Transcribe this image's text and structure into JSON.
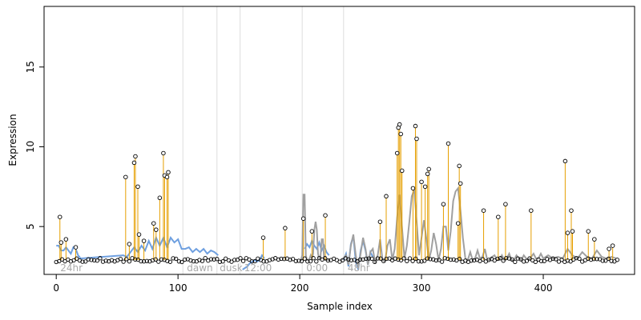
{
  "chart_data": {
    "type": "scatter",
    "title": "",
    "xlabel": "Sample index",
    "ylabel": "Expression",
    "xlim": [
      -10,
      475
    ],
    "ylim": [
      2.0,
      18.8
    ],
    "x_ticks": [
      0,
      100,
      200,
      300,
      400
    ],
    "y_ticks": [
      5,
      10,
      15
    ],
    "grid": false,
    "colors": {
      "points_stroke": "#000000",
      "stems": "#e69f00",
      "fit_blue": "#6fa0e0",
      "fit_gray": "#a0a0a0",
      "phase_lines": "#dddddd",
      "phase_text": "#aaaaaa"
    },
    "phase_boundaries": [
      104,
      132,
      151,
      202,
      236
    ],
    "phase_labels": [
      {
        "text": "24hr",
        "x": 2
      },
      {
        "text": "dawn",
        "x": 106
      },
      {
        "text": "dusk",
        "x": 133
      },
      {
        "text": "12:00",
        "x": 153
      },
      {
        "text": "0:00",
        "x": 204
      },
      {
        "text": "48hr",
        "x": 238
      }
    ],
    "baseline": 2.9,
    "highlighted_points": [
      {
        "x": 3,
        "y": 5.6
      },
      {
        "x": 4,
        "y": 4.0
      },
      {
        "x": 8,
        "y": 4.2
      },
      {
        "x": 16,
        "y": 3.7
      },
      {
        "x": 57,
        "y": 8.1
      },
      {
        "x": 60,
        "y": 3.9
      },
      {
        "x": 64,
        "y": 9.0
      },
      {
        "x": 65,
        "y": 9.4
      },
      {
        "x": 67,
        "y": 7.5
      },
      {
        "x": 68,
        "y": 4.5
      },
      {
        "x": 72,
        "y": 4.1
      },
      {
        "x": 80,
        "y": 5.2
      },
      {
        "x": 82,
        "y": 4.8
      },
      {
        "x": 85,
        "y": 6.8
      },
      {
        "x": 88,
        "y": 9.6
      },
      {
        "x": 89,
        "y": 8.2
      },
      {
        "x": 91,
        "y": 8.1
      },
      {
        "x": 92,
        "y": 8.4
      },
      {
        "x": 170,
        "y": 4.3
      },
      {
        "x": 188,
        "y": 4.9
      },
      {
        "x": 203,
        "y": 5.5
      },
      {
        "x": 210,
        "y": 4.7
      },
      {
        "x": 221,
        "y": 5.7
      },
      {
        "x": 266,
        "y": 5.3
      },
      {
        "x": 271,
        "y": 6.9
      },
      {
        "x": 280,
        "y": 9.6
      },
      {
        "x": 281,
        "y": 11.2
      },
      {
        "x": 282,
        "y": 11.4
      },
      {
        "x": 283,
        "y": 10.8
      },
      {
        "x": 284,
        "y": 8.5
      },
      {
        "x": 293,
        "y": 7.4
      },
      {
        "x": 295,
        "y": 11.3
      },
      {
        "x": 296,
        "y": 10.5
      },
      {
        "x": 300,
        "y": 7.8
      },
      {
        "x": 303,
        "y": 7.5
      },
      {
        "x": 305,
        "y": 8.3
      },
      {
        "x": 306,
        "y": 8.6
      },
      {
        "x": 318,
        "y": 6.4
      },
      {
        "x": 322,
        "y": 10.2
      },
      {
        "x": 330,
        "y": 5.2
      },
      {
        "x": 331,
        "y": 8.8
      },
      {
        "x": 332,
        "y": 7.7
      },
      {
        "x": 351,
        "y": 6.0
      },
      {
        "x": 363,
        "y": 5.6
      },
      {
        "x": 369,
        "y": 6.4
      },
      {
        "x": 390,
        "y": 6.0
      },
      {
        "x": 418,
        "y": 9.1
      },
      {
        "x": 420,
        "y": 4.6
      },
      {
        "x": 423,
        "y": 6.0
      },
      {
        "x": 424,
        "y": 4.7
      },
      {
        "x": 437,
        "y": 4.7
      },
      {
        "x": 442,
        "y": 4.2
      },
      {
        "x": 454,
        "y": 3.6
      },
      {
        "x": 457,
        "y": 3.8
      }
    ],
    "fit_curves": [
      {
        "color": "blue",
        "x": [
          0,
          2,
          4,
          6,
          8,
          10,
          12,
          14,
          16,
          18,
          20,
          55,
          58,
          61,
          64,
          67,
          70,
          73,
          76,
          79,
          82,
          85,
          88,
          91,
          94,
          97,
          100,
          103,
          106,
          109,
          112,
          115,
          118,
          121,
          124,
          127,
          130,
          133
        ],
        "y": [
          3.8,
          3.8,
          3.5,
          3.5,
          3.7,
          3.5,
          3.3,
          3.7,
          3.6,
          3.2,
          3.0,
          3.2,
          3.1,
          3.4,
          3.7,
          3.4,
          3.8,
          3.5,
          4.1,
          3.6,
          4.3,
          3.8,
          4.3,
          3.7,
          4.3,
          4.0,
          4.2,
          3.6,
          3.6,
          3.7,
          3.4,
          3.6,
          3.4,
          3.6,
          3.3,
          3.5,
          3.4,
          3.2
        ]
      },
      {
        "color": "blue",
        "x": [
          153,
          155,
          157,
          159,
          161,
          163,
          165,
          167,
          169,
          171
        ],
        "y": [
          2.3,
          2.4,
          2.5,
          2.7,
          2.8,
          2.9,
          2.8,
          2.9,
          3.2,
          3.0
        ]
      },
      {
        "color": "blue",
        "x": [
          204,
          206,
          208,
          210,
          212,
          214,
          216,
          218,
          220,
          222,
          224
        ],
        "y": [
          3.6,
          3.9,
          3.7,
          4.1,
          3.8,
          3.6,
          4.0,
          3.5,
          3.8,
          3.4,
          3.2
        ]
      },
      {
        "color": "gray",
        "x": [
          200,
          201,
          202,
          203,
          204,
          205,
          206,
          207,
          208,
          209,
          210,
          211,
          212,
          213,
          214,
          215,
          216,
          217,
          218,
          219,
          220,
          221,
          222,
          223,
          224
        ],
        "y": [
          2.9,
          2.9,
          3.2,
          7.0,
          7.0,
          3.2,
          2.9,
          2.9,
          3.0,
          3.2,
          3.0,
          3.3,
          4.8,
          5.3,
          4.8,
          3.3,
          3.0,
          3.0,
          4.2,
          4.2,
          3.0,
          2.9,
          2.9,
          2.9,
          2.9
        ]
      },
      {
        "color": "blue",
        "x": [
          236,
          238,
          240,
          242,
          244,
          246,
          248,
          250,
          252,
          254,
          256,
          258,
          260
        ],
        "y": [
          2.9,
          3.3,
          2.5,
          3.9,
          4.4,
          2.8,
          2.3,
          3.5,
          4.1,
          3.5,
          2.6,
          3.4,
          3.1
        ]
      },
      {
        "color": "gray",
        "x": [
          234,
          236,
          238,
          240,
          242,
          244,
          246,
          248,
          250,
          252,
          254,
          256,
          258,
          260,
          262,
          264,
          266,
          268,
          270,
          272,
          274,
          276,
          278,
          280,
          282,
          284,
          286,
          288,
          290,
          292,
          294,
          296,
          298,
          300,
          302,
          304,
          306,
          308,
          310,
          312,
          314,
          316,
          318,
          320,
          322,
          324,
          326,
          328,
          330,
          332,
          334,
          336,
          338,
          340,
          342,
          344,
          346,
          348,
          350,
          352,
          354,
          356,
          358,
          360,
          362,
          364,
          366,
          368,
          370,
          372,
          374,
          376,
          378,
          380,
          382,
          384,
          386,
          388,
          390,
          392,
          394,
          396,
          398,
          400,
          404,
          408,
          412,
          416,
          420,
          424,
          428,
          432,
          436,
          440,
          444,
          448,
          452,
          456,
          460
        ],
        "y": [
          2.9,
          3.0,
          3.2,
          2.6,
          3.8,
          4.5,
          3.2,
          2.4,
          3.3,
          4.3,
          3.6,
          2.6,
          3.4,
          3.6,
          2.7,
          3.2,
          4.2,
          2.9,
          2.8,
          3.8,
          4.2,
          2.9,
          3.6,
          5.6,
          7.0,
          4.9,
          3.0,
          3.8,
          5.3,
          6.9,
          7.3,
          5.3,
          3.2,
          4.3,
          5.4,
          4.2,
          2.9,
          3.5,
          4.6,
          3.9,
          2.9,
          3.6,
          5.0,
          5.0,
          3.5,
          4.7,
          6.6,
          7.2,
          7.4,
          6.0,
          4.3,
          3.0,
          2.9,
          3.4,
          2.9,
          3.0,
          3.5,
          3.0,
          3.1,
          3.6,
          2.9,
          2.9,
          3.1,
          3.2,
          2.9,
          2.9,
          3.2,
          2.9,
          3.0,
          3.3,
          2.9,
          2.9,
          3.2,
          3.0,
          2.9,
          3.2,
          3.0,
          2.9,
          3.1,
          3.3,
          3.0,
          3.0,
          3.3,
          3.0,
          3.2,
          3.0,
          3.1,
          3.0,
          3.6,
          3.2,
          3.0,
          3.4,
          3.1,
          3.0,
          3.5,
          3.1,
          3.0,
          3.1,
          3.0
        ]
      }
    ]
  }
}
